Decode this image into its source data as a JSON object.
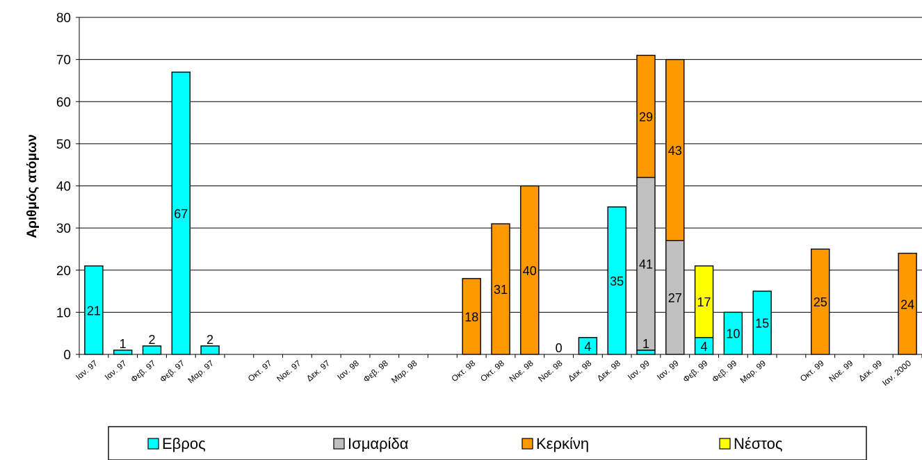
{
  "chart_data": {
    "type": "bar",
    "stacked": true,
    "title": "",
    "xlabel": "",
    "ylabel": "Αριθμός ατόμων",
    "ylim": [
      0,
      80
    ],
    "yticks": [
      0,
      10,
      20,
      30,
      40,
      50,
      60,
      70,
      80
    ],
    "grid": true,
    "legend_position": "bottom",
    "categories": [
      "Ιαν. 97",
      "Ιαν. 97",
      "Φεβ. 97",
      "Φεβ. 97",
      "Μαρ. 97",
      "",
      "Οκτ. 97",
      "Νοε. 97",
      "Δεκ. 97",
      "Ιαν. 98",
      "Φεβ. 98",
      "Μαρ. 98",
      "",
      "Οκτ. 98",
      "Οκτ. 98",
      "Νοε. 98",
      "Νοε. 98",
      "Δεκ. 98",
      "Δεκ. 98",
      "Ιαν. 99",
      "Ιαν. 99",
      "Φεβ. 99",
      "Φεβ. 99",
      "Μαρ. 99",
      "",
      "Οκτ. 99",
      "Νοε. 99",
      "Δεκ. 99",
      "Ιαν. 2000"
    ],
    "series": [
      {
        "name": "Εβρος",
        "color": "#00FFFF",
        "values": [
          21,
          1,
          2,
          67,
          2,
          null,
          null,
          null,
          null,
          null,
          null,
          null,
          null,
          null,
          null,
          null,
          0,
          4,
          35,
          1,
          null,
          4,
          10,
          15,
          null,
          null,
          null,
          null,
          null
        ]
      },
      {
        "name": "Ισμαρίδα",
        "color": "#C0C0C0",
        "values": [
          null,
          null,
          null,
          null,
          null,
          null,
          null,
          null,
          null,
          null,
          null,
          null,
          null,
          null,
          null,
          null,
          null,
          null,
          null,
          41,
          27,
          null,
          null,
          null,
          null,
          null,
          null,
          null,
          null
        ]
      },
      {
        "name": "Κερκίνη",
        "color": "#FF9900",
        "values": [
          null,
          null,
          null,
          null,
          null,
          null,
          null,
          null,
          null,
          null,
          null,
          null,
          null,
          18,
          31,
          40,
          null,
          null,
          null,
          29,
          43,
          null,
          null,
          null,
          null,
          25,
          null,
          null,
          24
        ]
      },
      {
        "name": "Νέστος",
        "color": "#FFFF00",
        "values": [
          null,
          null,
          null,
          null,
          null,
          null,
          null,
          null,
          null,
          null,
          null,
          null,
          null,
          null,
          null,
          null,
          null,
          null,
          null,
          null,
          null,
          17,
          null,
          null,
          null,
          null,
          null,
          null,
          null
        ]
      }
    ]
  }
}
